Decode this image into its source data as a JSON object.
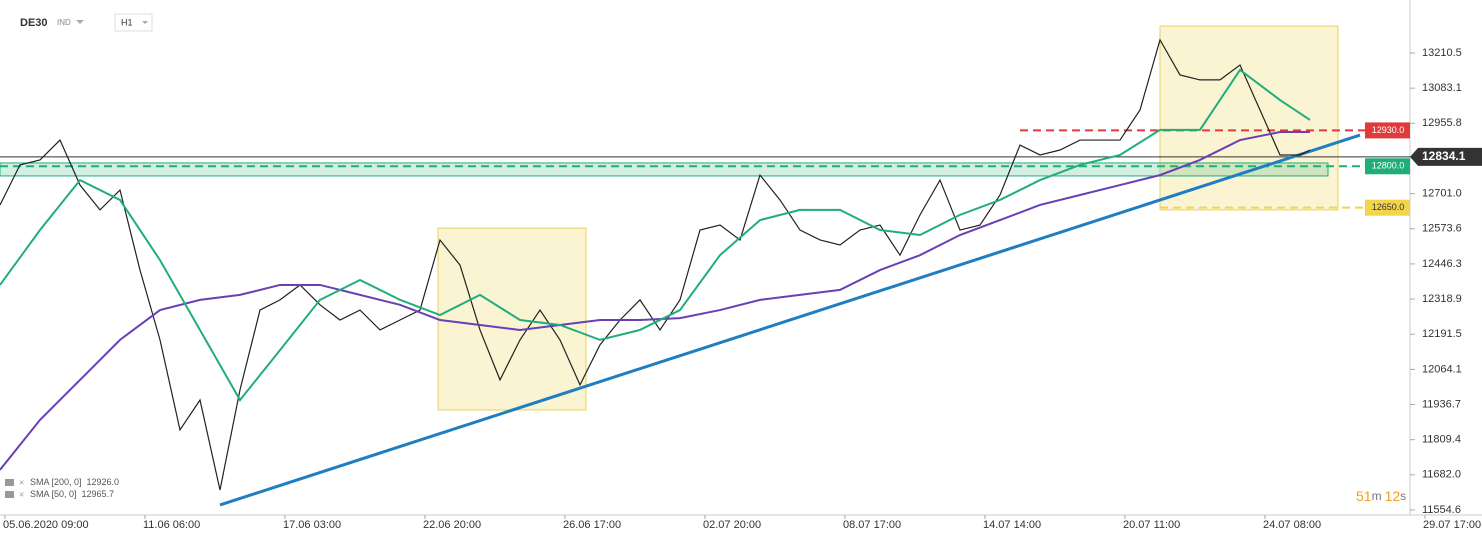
{
  "header": {
    "symbol": "DE30",
    "market": "IND",
    "timeframe": "H1"
  },
  "timer": {
    "minutes": "51",
    "minutes_unit": "m",
    "seconds": "12",
    "seconds_unit": "s"
  },
  "chart_data": {
    "type": "line",
    "xlim": [
      0,
      141
    ],
    "ylim": [
      11536.5,
      13402.5
    ],
    "xticks": [
      {
        "value": 0.5,
        "label": "05.06.2020  09:00"
      },
      {
        "value": 14.5,
        "label": "11.06  06:00"
      },
      {
        "value": 28.5,
        "label": "17.06  03:00"
      },
      {
        "value": 42.5,
        "label": "22.06  20:00"
      },
      {
        "value": 56.5,
        "label": "26.06  17:00"
      },
      {
        "value": 70.5,
        "label": "02.07  20:00"
      },
      {
        "value": 84.5,
        "label": "08.07  17:00"
      },
      {
        "value": 98.5,
        "label": "14.07  14:00"
      },
      {
        "value": 112.5,
        "label": "20.07  11:00"
      },
      {
        "value": 126.5,
        "label": "24.07  08:00"
      },
      {
        "value": 142.5,
        "label": "29.07  17:00"
      }
    ],
    "yticks": [
      13210.5,
      13083.1,
      12955.8,
      {
        "value": 12701.0,
        "label": "12701.0"
      },
      12573.6,
      12446.3,
      12318.9,
      12191.5,
      12064.1,
      11936.7,
      11809.4,
      {
        "value": 11682.0,
        "label": "11682.0"
      },
      11554.6
    ],
    "series": [
      {
        "name": "DE30",
        "color": "#222222",
        "x": [
          0,
          2,
          4,
          6,
          8,
          10,
          12,
          14,
          16,
          18,
          20,
          22,
          24,
          26,
          28,
          30,
          32,
          34,
          36,
          38,
          40,
          42,
          44,
          46,
          48,
          50,
          52,
          54,
          56,
          58,
          60,
          62,
          64,
          66,
          68,
          70,
          72,
          74,
          76,
          78,
          80,
          82,
          84,
          86,
          88,
          90,
          92,
          94,
          96,
          98,
          100,
          102,
          104,
          106,
          108,
          110,
          112,
          114,
          116,
          118,
          120,
          122,
          124,
          126,
          128,
          130,
          131
        ],
        "values": [
          12660,
          12805,
          12823,
          12895,
          12732,
          12642,
          12714,
          12424,
          12171,
          11845,
          11953,
          11627,
          11990,
          12279,
          12316,
          12370,
          12298,
          12243,
          12279,
          12207,
          12243,
          12279,
          12533,
          12442,
          12207,
          12026,
          12171,
          12279,
          12171,
          12008,
          12153,
          12243,
          12316,
          12207,
          12316,
          12569,
          12587,
          12533,
          12768,
          12678,
          12569,
          12533,
          12515,
          12569,
          12587,
          12478,
          12624,
          12750,
          12569,
          12587,
          12696,
          12877,
          12841,
          12859,
          12895,
          12895,
          12895,
          13004,
          13258,
          13131,
          13113,
          13113,
          13167,
          13004,
          12841,
          12841,
          12859
        ]
      },
      {
        "name": "SMA [200, 0]",
        "legend_value": 12926.0,
        "legend_value_label": "12926.0",
        "color": "#6a3fb5",
        "x": [
          0,
          4,
          8,
          12,
          16,
          20,
          24,
          28,
          32,
          36,
          40,
          44,
          48,
          52,
          56,
          60,
          64,
          68,
          72,
          76,
          80,
          84,
          88,
          92,
          96,
          100,
          104,
          108,
          112,
          116,
          120,
          124,
          128,
          131
        ],
        "values": [
          11700,
          11881,
          12026,
          12171,
          12279,
          12316,
          12334,
          12370,
          12370,
          12334,
          12298,
          12243,
          12225,
          12207,
          12225,
          12243,
          12243,
          12250,
          12279,
          12316,
          12334,
          12352,
          12424,
          12478,
          12551,
          12605,
          12660,
          12696,
          12732,
          12768,
          12823,
          12895,
          12924,
          12924
        ]
      },
      {
        "name": "SMA [50, 0]",
        "legend_value": 12965.7,
        "legend_value_label": "12965.7",
        "color": "#1fae7a",
        "x": [
          0,
          4,
          8,
          12,
          16,
          20,
          24,
          28,
          32,
          36,
          40,
          44,
          48,
          52,
          56,
          60,
          64,
          68,
          72,
          76,
          80,
          84,
          88,
          92,
          96,
          100,
          104,
          108,
          112,
          116,
          120,
          124,
          128,
          131
        ],
        "values": [
          12370,
          12569,
          12750,
          12678,
          12460,
          12207,
          11953,
          12134,
          12316,
          12388,
          12316,
          12261,
          12334,
          12243,
          12225,
          12171,
          12207,
          12279,
          12478,
          12605,
          12642,
          12642,
          12569,
          12551,
          12624,
          12678,
          12750,
          12805,
          12841,
          12932,
          12932,
          13149,
          13040,
          12968
        ]
      }
    ],
    "trendline": {
      "color": "#1f7dc1",
      "x": [
        22,
        136
      ],
      "values": [
        11573,
        12913
      ]
    },
    "zones": [
      {
        "x": [
          43.8,
          58.6
        ],
        "values": [
          11917,
          12576
        ]
      },
      {
        "x": [
          116,
          133.8
        ],
        "values": [
          12642,
          13308
        ]
      }
    ],
    "support_band": {
      "x": [
        0,
        132.8
      ],
      "values": [
        12765,
        12812
      ]
    },
    "levels": [
      {
        "value": 12930.0,
        "label": "12930.0",
        "color": "#e03b3b",
        "from": 102
      },
      {
        "value": 12800.0,
        "label": "12800.0",
        "color": "#1fae7a",
        "from": 0
      },
      {
        "value": 12650.0,
        "label": "12650.0",
        "color": "#f2d54a",
        "from": 116
      }
    ],
    "current_price": 12834.1
  }
}
